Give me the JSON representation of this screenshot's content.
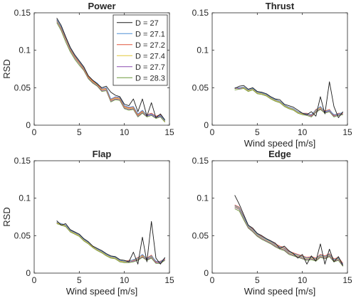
{
  "figure": {
    "colors": {
      "D = 27": "#1a1a1a",
      "D = 27.1": "#4f8fd6",
      "D = 27.2": "#e0553a",
      "D = 27.4": "#e2c73a",
      "D = 27.7": "#8a4bb0",
      "D = 28.3": "#6f9a3c"
    },
    "axis_color": "#262626"
  },
  "chart_data": [
    {
      "type": "line",
      "title": "Power",
      "xlabel": "",
      "ylabel": "RSD",
      "xlim": [
        0,
        15
      ],
      "ylim": [
        0,
        0.15
      ],
      "xticks": [
        "0",
        "5",
        "10",
        "15"
      ],
      "yticks": [
        "0",
        "0.05",
        "0.1",
        "0.15"
      ],
      "legend": "top-right",
      "grid": false,
      "x": [
        2.5,
        3,
        3.5,
        4,
        4.5,
        5,
        5.5,
        6,
        6.5,
        7,
        7.5,
        8,
        8.5,
        9,
        9.5,
        10,
        10.5,
        11,
        11.5,
        12,
        12.5,
        13,
        13.5,
        14,
        14.5
      ],
      "series": [
        {
          "name": "D = 27",
          "values": [
            0.143,
            0.133,
            0.118,
            0.104,
            0.094,
            0.086,
            0.078,
            0.066,
            0.06,
            0.055,
            0.05,
            0.052,
            0.044,
            0.04,
            0.038,
            0.028,
            0.026,
            0.035,
            0.018,
            0.035,
            0.012,
            0.03,
            0.01,
            0.015,
            0.007
          ]
        },
        {
          "name": "D = 27.1",
          "values": [
            0.141,
            0.131,
            0.117,
            0.103,
            0.093,
            0.085,
            0.077,
            0.066,
            0.06,
            0.056,
            0.049,
            0.05,
            0.035,
            0.038,
            0.037,
            0.026,
            0.024,
            0.025,
            0.015,
            0.02,
            0.013,
            0.015,
            0.011,
            0.013,
            0.006
          ]
        },
        {
          "name": "D = 27.2",
          "values": [
            0.141,
            0.13,
            0.116,
            0.102,
            0.092,
            0.084,
            0.076,
            0.065,
            0.059,
            0.055,
            0.048,
            0.049,
            0.034,
            0.037,
            0.036,
            0.025,
            0.023,
            0.024,
            0.014,
            0.019,
            0.014,
            0.016,
            0.012,
            0.014,
            0.006
          ]
        },
        {
          "name": "D = 27.4",
          "values": [
            0.14,
            0.129,
            0.115,
            0.101,
            0.091,
            0.083,
            0.075,
            0.064,
            0.058,
            0.054,
            0.047,
            0.048,
            0.033,
            0.036,
            0.035,
            0.024,
            0.022,
            0.023,
            0.013,
            0.018,
            0.013,
            0.015,
            0.011,
            0.013,
            0.005
          ]
        },
        {
          "name": "D = 27.7",
          "values": [
            0.139,
            0.128,
            0.114,
            0.1,
            0.09,
            0.082,
            0.074,
            0.063,
            0.057,
            0.053,
            0.046,
            0.047,
            0.032,
            0.035,
            0.034,
            0.023,
            0.021,
            0.022,
            0.012,
            0.017,
            0.012,
            0.014,
            0.01,
            0.012,
            0.005
          ]
        },
        {
          "name": "D = 28.3",
          "values": [
            0.137,
            0.126,
            0.111,
            0.098,
            0.088,
            0.08,
            0.073,
            0.062,
            0.056,
            0.052,
            0.045,
            0.046,
            0.031,
            0.034,
            0.033,
            0.022,
            0.02,
            0.021,
            0.011,
            0.016,
            0.011,
            0.013,
            0.009,
            0.011,
            0.004
          ]
        }
      ]
    },
    {
      "type": "line",
      "title": "Thrust",
      "xlabel": "Wind speed [m/s]",
      "ylabel": "",
      "xlim": [
        0,
        15
      ],
      "ylim": [
        0,
        0.15
      ],
      "xticks": [
        "0",
        "5",
        "10",
        "15"
      ],
      "yticks": [
        "0",
        "0.05",
        "0.1",
        "0.15"
      ],
      "grid": false,
      "x": [
        2.5,
        3,
        3.5,
        4,
        4.5,
        5,
        5.5,
        6,
        6.5,
        7,
        7.5,
        8,
        8.5,
        9,
        9.5,
        10,
        10.5,
        11,
        11.5,
        12,
        12.5,
        13,
        13.5,
        14,
        14.5
      ],
      "series": [
        {
          "name": "D = 27",
          "values": [
            0.049,
            0.052,
            0.053,
            0.048,
            0.05,
            0.045,
            0.044,
            0.042,
            0.038,
            0.035,
            0.034,
            0.028,
            0.026,
            0.024,
            0.02,
            0.016,
            0.014,
            0.018,
            0.012,
            0.038,
            0.015,
            0.058,
            0.025,
            0.01,
            0.018
          ]
        },
        {
          "name": "D = 27.1",
          "values": [
            0.05,
            0.05,
            0.051,
            0.047,
            0.049,
            0.044,
            0.043,
            0.041,
            0.037,
            0.034,
            0.032,
            0.027,
            0.024,
            0.022,
            0.018,
            0.016,
            0.015,
            0.014,
            0.02,
            0.025,
            0.018,
            0.02,
            0.014,
            0.015,
            0.017
          ]
        },
        {
          "name": "D = 27.2",
          "values": [
            0.05,
            0.05,
            0.051,
            0.047,
            0.049,
            0.044,
            0.043,
            0.041,
            0.037,
            0.034,
            0.032,
            0.027,
            0.024,
            0.022,
            0.018,
            0.016,
            0.016,
            0.013,
            0.021,
            0.024,
            0.019,
            0.021,
            0.013,
            0.016,
            0.016
          ]
        },
        {
          "name": "D = 27.4",
          "values": [
            0.049,
            0.05,
            0.05,
            0.046,
            0.048,
            0.043,
            0.042,
            0.04,
            0.036,
            0.033,
            0.031,
            0.026,
            0.023,
            0.021,
            0.017,
            0.015,
            0.015,
            0.013,
            0.019,
            0.023,
            0.018,
            0.02,
            0.013,
            0.015,
            0.016
          ]
        },
        {
          "name": "D = 27.7",
          "values": [
            0.049,
            0.049,
            0.05,
            0.046,
            0.048,
            0.043,
            0.042,
            0.04,
            0.036,
            0.033,
            0.031,
            0.026,
            0.023,
            0.021,
            0.017,
            0.015,
            0.014,
            0.012,
            0.018,
            0.022,
            0.017,
            0.019,
            0.012,
            0.014,
            0.015
          ]
        },
        {
          "name": "D = 28.3",
          "values": [
            0.047,
            0.048,
            0.049,
            0.045,
            0.047,
            0.042,
            0.041,
            0.039,
            0.035,
            0.032,
            0.03,
            0.025,
            0.022,
            0.02,
            0.016,
            0.014,
            0.013,
            0.011,
            0.017,
            0.021,
            0.016,
            0.018,
            0.011,
            0.013,
            0.014
          ]
        }
      ]
    },
    {
      "type": "line",
      "title": "Flap",
      "xlabel": "Wind speed [m/s]",
      "ylabel": "RSD",
      "xlim": [
        0,
        15
      ],
      "ylim": [
        0,
        0.15
      ],
      "xticks": [
        "0",
        "5",
        "10",
        "15"
      ],
      "yticks": [
        "0",
        "0.05",
        "0.1",
        "0.15"
      ],
      "grid": false,
      "x": [
        2.5,
        3,
        3.5,
        4,
        4.5,
        5,
        5.5,
        6,
        6.5,
        7,
        7.5,
        8,
        8.5,
        9,
        9.5,
        10,
        10.5,
        11,
        11.5,
        12,
        12.5,
        13,
        13.5,
        14,
        14.5
      ],
      "series": [
        {
          "name": "D = 27",
          "values": [
            0.07,
            0.064,
            0.066,
            0.058,
            0.055,
            0.052,
            0.046,
            0.042,
            0.036,
            0.033,
            0.03,
            0.026,
            0.023,
            0.022,
            0.018,
            0.017,
            0.015,
            0.028,
            0.012,
            0.048,
            0.015,
            0.069,
            0.02,
            0.012,
            0.021
          ]
        },
        {
          "name": "D = 27.1",
          "values": [
            0.068,
            0.066,
            0.064,
            0.057,
            0.054,
            0.051,
            0.045,
            0.041,
            0.036,
            0.032,
            0.029,
            0.025,
            0.022,
            0.021,
            0.017,
            0.016,
            0.016,
            0.018,
            0.02,
            0.025,
            0.019,
            0.023,
            0.016,
            0.015,
            0.02
          ]
        },
        {
          "name": "D = 27.2",
          "values": [
            0.068,
            0.066,
            0.064,
            0.057,
            0.054,
            0.051,
            0.045,
            0.041,
            0.036,
            0.032,
            0.029,
            0.025,
            0.022,
            0.021,
            0.017,
            0.016,
            0.017,
            0.017,
            0.021,
            0.024,
            0.02,
            0.024,
            0.015,
            0.016,
            0.019
          ]
        },
        {
          "name": "D = 27.4",
          "values": [
            0.067,
            0.065,
            0.063,
            0.056,
            0.053,
            0.05,
            0.044,
            0.04,
            0.035,
            0.031,
            0.028,
            0.024,
            0.021,
            0.02,
            0.016,
            0.015,
            0.016,
            0.017,
            0.019,
            0.023,
            0.019,
            0.022,
            0.015,
            0.015,
            0.019
          ]
        },
        {
          "name": "D = 27.7",
          "values": [
            0.067,
            0.065,
            0.063,
            0.056,
            0.053,
            0.05,
            0.044,
            0.04,
            0.035,
            0.031,
            0.028,
            0.024,
            0.021,
            0.02,
            0.016,
            0.015,
            0.015,
            0.016,
            0.018,
            0.022,
            0.018,
            0.021,
            0.014,
            0.014,
            0.018
          ]
        },
        {
          "name": "D = 28.3",
          "values": [
            0.066,
            0.064,
            0.062,
            0.055,
            0.052,
            0.049,
            0.043,
            0.039,
            0.034,
            0.03,
            0.027,
            0.023,
            0.02,
            0.019,
            0.015,
            0.014,
            0.014,
            0.015,
            0.017,
            0.021,
            0.017,
            0.02,
            0.013,
            0.013,
            0.017
          ]
        }
      ]
    },
    {
      "type": "line",
      "title": "Edge",
      "xlabel": "Wind speed [m/s]",
      "ylabel": "",
      "xlim": [
        0,
        15
      ],
      "ylim": [
        0,
        0.15
      ],
      "xticks": [
        "0",
        "5",
        "10",
        "15"
      ],
      "yticks": [
        "0",
        "0.05",
        "0.1",
        "0.15"
      ],
      "grid": false,
      "x": [
        2.5,
        3,
        3.5,
        4,
        4.5,
        5,
        5.5,
        6,
        6.5,
        7,
        7.5,
        8,
        8.5,
        9,
        9.5,
        10,
        10.5,
        11,
        11.5,
        12,
        12.5,
        13,
        13.5,
        14,
        14.5
      ],
      "series": [
        {
          "name": "D = 27",
          "values": [
            0.104,
            0.092,
            0.078,
            0.064,
            0.06,
            0.053,
            0.05,
            0.046,
            0.043,
            0.04,
            0.033,
            0.036,
            0.03,
            0.026,
            0.02,
            0.025,
            0.012,
            0.023,
            0.016,
            0.039,
            0.012,
            0.032,
            0.015,
            0.022,
            0.01
          ]
        },
        {
          "name": "D = 27.1",
          "values": [
            0.09,
            0.087,
            0.075,
            0.063,
            0.058,
            0.052,
            0.048,
            0.045,
            0.042,
            0.038,
            0.035,
            0.033,
            0.028,
            0.026,
            0.024,
            0.022,
            0.02,
            0.021,
            0.019,
            0.024,
            0.022,
            0.025,
            0.018,
            0.02,
            0.012
          ]
        },
        {
          "name": "D = 27.2",
          "values": [
            0.091,
            0.088,
            0.076,
            0.064,
            0.059,
            0.053,
            0.049,
            0.046,
            0.043,
            0.039,
            0.036,
            0.034,
            0.029,
            0.027,
            0.025,
            0.023,
            0.021,
            0.022,
            0.02,
            0.025,
            0.023,
            0.026,
            0.019,
            0.021,
            0.013
          ]
        },
        {
          "name": "D = 27.4",
          "values": [
            0.089,
            0.086,
            0.074,
            0.062,
            0.057,
            0.051,
            0.047,
            0.044,
            0.041,
            0.037,
            0.034,
            0.032,
            0.027,
            0.025,
            0.023,
            0.021,
            0.019,
            0.02,
            0.018,
            0.023,
            0.021,
            0.024,
            0.017,
            0.019,
            0.011
          ]
        },
        {
          "name": "D = 27.7",
          "values": [
            0.088,
            0.085,
            0.073,
            0.061,
            0.056,
            0.05,
            0.046,
            0.043,
            0.04,
            0.036,
            0.033,
            0.031,
            0.026,
            0.024,
            0.022,
            0.02,
            0.018,
            0.019,
            0.017,
            0.022,
            0.02,
            0.023,
            0.016,
            0.018,
            0.01
          ]
        },
        {
          "name": "D = 28.3",
          "values": [
            0.086,
            0.083,
            0.071,
            0.06,
            0.055,
            0.049,
            0.045,
            0.042,
            0.039,
            0.035,
            0.032,
            0.03,
            0.025,
            0.023,
            0.021,
            0.019,
            0.017,
            0.018,
            0.016,
            0.021,
            0.019,
            0.022,
            0.015,
            0.017,
            0.009
          ]
        }
      ]
    }
  ]
}
